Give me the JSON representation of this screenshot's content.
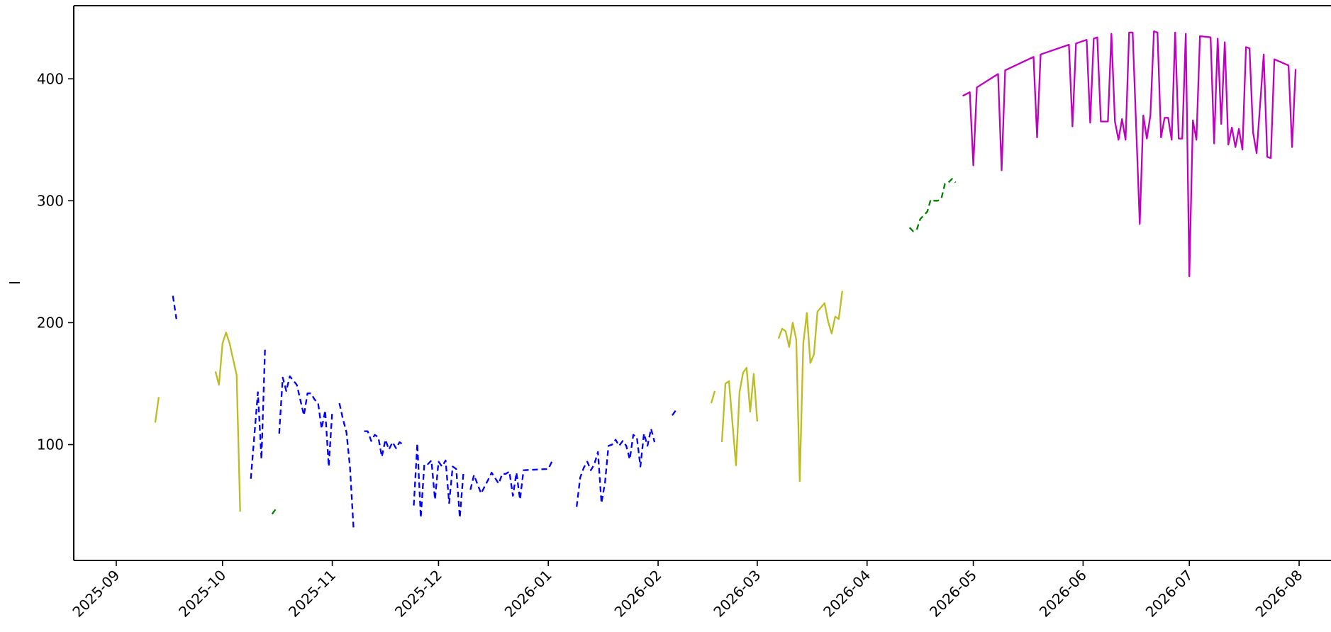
{
  "chart_data": {
    "type": "line",
    "title": "",
    "xlabel": "",
    "ylabel": "I",
    "x_type": "date",
    "xlim": [
      "2025-08-20",
      "2026-08-10"
    ],
    "ylim": [
      5,
      460
    ],
    "grid": false,
    "legend": "none",
    "x_ticks": [
      "2025-09",
      "2025-10",
      "2025-11",
      "2025-12",
      "2026-01",
      "2026-02",
      "2026-03",
      "2026-04",
      "2026-05",
      "2026-06",
      "2026-07",
      "2026-08"
    ],
    "y_ticks": [
      100,
      200,
      300,
      400
    ],
    "series": [
      {
        "color": "#bcbd22",
        "style": "solid",
        "segments": [
          [
            [
              "2025-09-12",
              118
            ],
            [
              "2025-09-13",
              139
            ]
          ],
          [
            [
              "2025-09-29",
              160
            ],
            [
              "2025-09-30",
              149
            ],
            [
              "2025-10-01",
              183
            ],
            [
              "2025-10-02",
              192
            ],
            [
              "2025-10-03",
              183
            ],
            [
              "2025-10-05",
              157
            ],
            [
              "2025-10-06",
              45
            ]
          ],
          [
            [
              "2026-02-16",
              134
            ],
            [
              "2026-02-17",
              144
            ]
          ],
          [
            [
              "2026-02-19",
              102
            ],
            [
              "2026-02-20",
              150
            ],
            [
              "2026-02-21",
              152
            ],
            [
              "2026-02-23",
              83
            ],
            [
              "2026-02-24",
              143
            ],
            [
              "2026-02-25",
              159
            ],
            [
              "2026-02-26",
              163
            ],
            [
              "2026-02-27",
              127
            ],
            [
              "2026-02-28",
              158
            ],
            [
              "2026-03-01",
              119
            ]
          ],
          [
            [
              "2026-03-07",
              187
            ],
            [
              "2026-03-08",
              195
            ],
            [
              "2026-03-09",
              193
            ],
            [
              "2026-03-10",
              180
            ],
            [
              "2026-03-11",
              200
            ],
            [
              "2026-03-12",
              186
            ],
            [
              "2026-03-13",
              70
            ],
            [
              "2026-03-14",
              183
            ],
            [
              "2026-03-15",
              208
            ],
            [
              "2026-03-16",
              167
            ],
            [
              "2026-03-17",
              174
            ],
            [
              "2026-03-18",
              209
            ],
            [
              "2026-03-20",
              216
            ],
            [
              "2026-03-21",
              201
            ],
            [
              "2026-03-22",
              191
            ],
            [
              "2026-03-23",
              205
            ],
            [
              "2026-03-24",
              203
            ],
            [
              "2026-03-25",
              226
            ]
          ]
        ]
      },
      {
        "color": "#0000ff",
        "style": "dashed",
        "segments": [
          [
            [
              "2025-09-17",
              222
            ],
            [
              "2025-09-18",
              203
            ]
          ],
          [
            [
              "2025-10-09",
              72
            ],
            [
              "2025-10-11",
              143
            ],
            [
              "2025-10-12",
              88
            ],
            [
              "2025-10-13",
              178
            ]
          ],
          [
            [
              "2025-10-17",
              109
            ],
            [
              "2025-10-18",
              155
            ],
            [
              "2025-10-19",
              144
            ],
            [
              "2025-10-20",
              156
            ],
            [
              "2025-10-22",
              149
            ],
            [
              "2025-10-24",
              124
            ],
            [
              "2025-10-25",
              142
            ],
            [
              "2025-10-26",
              142
            ],
            [
              "2025-10-27",
              137
            ],
            [
              "2025-10-28",
              134
            ],
            [
              "2025-10-29",
              113
            ],
            [
              "2025-10-30",
              128
            ],
            [
              "2025-10-31",
              82
            ],
            [
              "2025-11-01",
              128
            ]
          ],
          [
            [
              "2025-11-03",
              134
            ],
            [
              "2025-11-04",
              121
            ],
            [
              "2025-11-05",
              110
            ],
            [
              "2025-11-06",
              81
            ],
            [
              "2025-11-07",
              31
            ]
          ],
          [
            [
              "2025-11-10",
              111
            ],
            [
              "2025-11-11",
              111
            ],
            [
              "2025-11-12",
              103
            ],
            [
              "2025-11-13",
              108
            ],
            [
              "2025-11-14",
              106
            ],
            [
              "2025-11-15",
              90
            ],
            [
              "2025-11-16",
              104
            ],
            [
              "2025-11-17",
              96
            ],
            [
              "2025-11-18",
              102
            ],
            [
              "2025-11-19",
              97
            ],
            [
              "2025-11-20",
              102
            ],
            [
              "2025-11-21",
              100
            ]
          ],
          [
            [
              "2025-11-24",
              50
            ],
            [
              "2025-11-25",
              101
            ],
            [
              "2025-11-26",
              40
            ],
            [
              "2025-11-27",
              84
            ],
            [
              "2025-11-28",
              84
            ],
            [
              "2025-11-29",
              87
            ],
            [
              "2025-11-30",
              55
            ],
            [
              "2025-12-01",
              86
            ],
            [
              "2025-12-02",
              82
            ],
            [
              "2025-12-03",
              87
            ],
            [
              "2025-12-04",
              52
            ],
            [
              "2025-12-05",
              82
            ],
            [
              "2025-12-06",
              80
            ],
            [
              "2025-12-07",
              40
            ],
            [
              "2025-12-08",
              76
            ]
          ],
          [
            [
              "2025-12-10",
              63
            ],
            [
              "2025-12-11",
              75
            ],
            [
              "2025-12-13",
              60
            ],
            [
              "2025-12-15",
              71
            ],
            [
              "2025-12-16",
              77
            ],
            [
              "2025-12-18",
              68
            ],
            [
              "2025-12-19",
              76
            ],
            [
              "2025-12-20",
              76
            ],
            [
              "2025-12-21",
              78
            ],
            [
              "2025-12-22",
              58
            ],
            [
              "2025-12-23",
              77
            ],
            [
              "2025-12-24",
              55
            ],
            [
              "2025-12-25",
              79
            ],
            [
              "2026-01-01",
              80
            ],
            [
              "2026-01-02",
              86
            ]
          ],
          [
            [
              "2026-01-09",
              49
            ],
            [
              "2026-01-10",
              73
            ],
            [
              "2026-01-11",
              81
            ],
            [
              "2026-01-12",
              86
            ],
            [
              "2026-01-13",
              79
            ],
            [
              "2026-01-14",
              84
            ],
            [
              "2026-01-15",
              94
            ],
            [
              "2026-01-16",
              52
            ],
            [
              "2026-01-17",
              69
            ],
            [
              "2026-01-18",
              99
            ],
            [
              "2026-01-19",
              100
            ],
            [
              "2026-01-20",
              104
            ],
            [
              "2026-01-21",
              99
            ],
            [
              "2026-01-22",
              103
            ],
            [
              "2026-01-23",
              99
            ],
            [
              "2026-01-24",
              88
            ],
            [
              "2026-01-25",
              108
            ],
            [
              "2026-01-26",
              106
            ],
            [
              "2026-01-27",
              82
            ],
            [
              "2026-01-28",
              109
            ],
            [
              "2026-01-29",
              99
            ],
            [
              "2026-01-30",
              113
            ],
            [
              "2026-01-31",
              102
            ]
          ],
          [
            [
              "2026-02-05",
              124
            ],
            [
              "2026-02-06",
              128
            ]
          ]
        ]
      },
      {
        "color": "#008000",
        "style": "dashed",
        "segments": [
          [
            [
              "2025-10-15",
              43
            ],
            [
              "2025-10-16",
              47
            ]
          ],
          [
            [
              "2026-04-13",
              278
            ],
            [
              "2026-04-14",
              275
            ],
            [
              "2026-04-15",
              276
            ],
            [
              "2026-04-16",
              285
            ],
            [
              "2026-04-17",
              288
            ],
            [
              "2026-04-18",
              291
            ],
            [
              "2026-04-19",
              301
            ],
            [
              "2026-04-20",
              300
            ],
            [
              "2026-04-21",
              300
            ],
            [
              "2026-04-22",
              302
            ],
            [
              "2026-04-23",
              314
            ],
            [
              "2026-04-24",
              315
            ],
            [
              "2026-04-25",
              318
            ],
            [
              "2026-04-26",
              315
            ]
          ]
        ]
      },
      {
        "color": "#bf00bf",
        "style": "solid",
        "segments": [
          [
            [
              "2026-04-28",
              386
            ],
            [
              "2026-04-30",
              389
            ],
            [
              "2026-05-01",
              329
            ],
            [
              "2026-05-02",
              393
            ],
            [
              "2026-05-08",
              404
            ],
            [
              "2026-05-09",
              325
            ],
            [
              "2026-05-10",
              407
            ],
            [
              "2026-05-18",
              418
            ],
            [
              "2026-05-19",
              352
            ],
            [
              "2026-05-20",
              420
            ],
            [
              "2026-05-28",
              428
            ],
            [
              "2026-05-29",
              361
            ],
            [
              "2026-05-30",
              429
            ],
            [
              "2026-06-02",
              432
            ],
            [
              "2026-06-03",
              364
            ],
            [
              "2026-06-04",
              433
            ],
            [
              "2026-06-05",
              434
            ],
            [
              "2026-06-06",
              365
            ],
            [
              "2026-06-08",
              365
            ],
            [
              "2026-06-09",
              437
            ],
            [
              "2026-06-10",
              365
            ],
            [
              "2026-06-11",
              350
            ],
            [
              "2026-06-12",
              367
            ],
            [
              "2026-06-13",
              350
            ],
            [
              "2026-06-14",
              438
            ],
            [
              "2026-06-15",
              438
            ],
            [
              "2026-06-17",
              281
            ],
            [
              "2026-06-18",
              370
            ],
            [
              "2026-06-19",
              351
            ],
            [
              "2026-06-20",
              370
            ],
            [
              "2026-06-21",
              439
            ],
            [
              "2026-06-22",
              438
            ],
            [
              "2026-06-23",
              352
            ],
            [
              "2026-06-24",
              368
            ],
            [
              "2026-06-25",
              368
            ],
            [
              "2026-06-26",
              350
            ],
            [
              "2026-06-27",
              438
            ],
            [
              "2026-06-28",
              351
            ],
            [
              "2026-06-29",
              351
            ],
            [
              "2026-06-30",
              437
            ],
            [
              "2026-07-01",
              238
            ],
            [
              "2026-07-02",
              366
            ],
            [
              "2026-07-03",
              350
            ],
            [
              "2026-07-04",
              435
            ],
            [
              "2026-07-07",
              434
            ],
            [
              "2026-07-08",
              347
            ],
            [
              "2026-07-09",
              433
            ],
            [
              "2026-07-10",
              363
            ],
            [
              "2026-07-11",
              430
            ],
            [
              "2026-07-12",
              346
            ],
            [
              "2026-07-13",
              360
            ],
            [
              "2026-07-14",
              344
            ],
            [
              "2026-07-15",
              359
            ],
            [
              "2026-07-16",
              342
            ],
            [
              "2026-07-17",
              426
            ],
            [
              "2026-07-18",
              425
            ],
            [
              "2026-07-19",
              356
            ],
            [
              "2026-07-20",
              339
            ],
            [
              "2026-07-22",
              420
            ],
            [
              "2026-07-23",
              336
            ],
            [
              "2026-07-24",
              335
            ],
            [
              "2026-07-25",
              416
            ],
            [
              "2026-07-29",
              411
            ],
            [
              "2026-07-30",
              344
            ],
            [
              "2026-07-31",
              408
            ]
          ]
        ]
      }
    ]
  }
}
